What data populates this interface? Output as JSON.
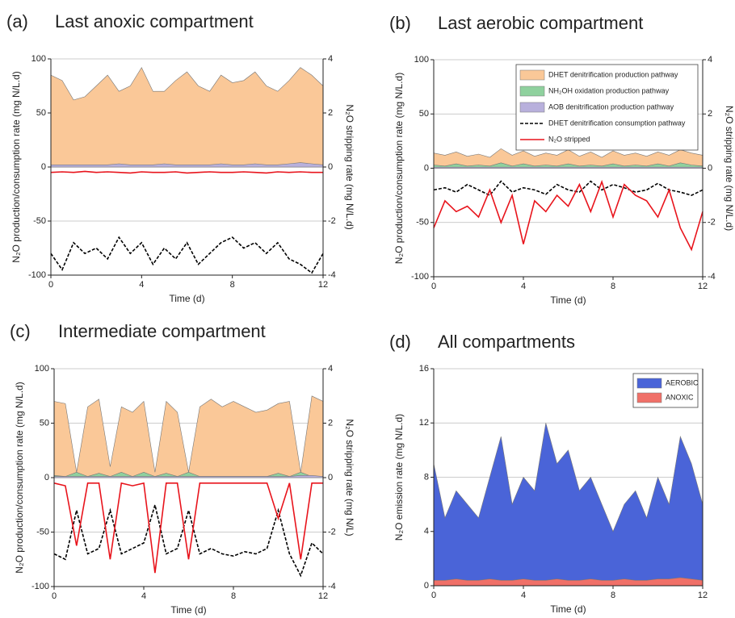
{
  "chart_data": [
    {
      "type": "area",
      "label": "(a)",
      "title": "Last anoxic compartment",
      "xlabel": "Time (d)",
      "ylabel": "N₂O production/consumption rate (mg N/L.d)",
      "y2label": "N₂O stripping rate (mg N/L.d)",
      "x": [
        0,
        0.5,
        1,
        1.5,
        2,
        2.5,
        3,
        3.5,
        4,
        4.5,
        5,
        5.5,
        6,
        6.5,
        7,
        7.5,
        8,
        8.5,
        9,
        9.5,
        10,
        10.5,
        11,
        11.5,
        12
      ],
      "xlim": [
        0,
        12
      ],
      "xticks": [
        0,
        4,
        8,
        12
      ],
      "ylim": [
        -100,
        100
      ],
      "yticks": [
        -100,
        -50,
        0,
        50,
        100
      ],
      "y2lim": [
        -4,
        4
      ],
      "y2ticks": [
        -4,
        -2,
        0,
        2,
        4
      ],
      "grid": true,
      "series": [
        {
          "style": "area",
          "color": "#fac898",
          "values": [
            85,
            80,
            62,
            65,
            75,
            85,
            70,
            75,
            92,
            70,
            70,
            80,
            88,
            75,
            70,
            85,
            78,
            80,
            88,
            75,
            70,
            80,
            92,
            85,
            75
          ]
        },
        {
          "style": "area",
          "color": "#8fd19e",
          "values": [
            1,
            1,
            1,
            1,
            1,
            1,
            1,
            1,
            1,
            1,
            1,
            1,
            1,
            1,
            1,
            1,
            1,
            1,
            1,
            1,
            1,
            1,
            1,
            1,
            1
          ]
        },
        {
          "style": "area",
          "color": "#b8b0dc",
          "values": [
            2,
            2,
            2,
            2,
            2,
            2,
            3,
            2,
            2,
            2,
            3,
            2,
            2,
            2,
            2,
            3,
            2,
            2,
            3,
            2,
            2,
            3,
            4,
            3,
            2
          ]
        },
        {
          "style": "line",
          "dash": true,
          "color": "#000000",
          "values": [
            -80,
            -95,
            -70,
            -80,
            -75,
            -85,
            -65,
            -80,
            -70,
            -90,
            -75,
            -85,
            -70,
            -90,
            -80,
            -70,
            -65,
            -75,
            -70,
            -80,
            -70,
            -85,
            -90,
            -98,
            -80
          ]
        },
        {
          "style": "line",
          "axis": "y2",
          "color": "#e8141c",
          "values": [
            -0.2,
            -0.18,
            -0.2,
            -0.16,
            -0.2,
            -0.18,
            -0.2,
            -0.22,
            -0.18,
            -0.2,
            -0.2,
            -0.18,
            -0.22,
            -0.2,
            -0.18,
            -0.2,
            -0.2,
            -0.18,
            -0.2,
            -0.22,
            -0.18,
            -0.2,
            -0.18,
            -0.2,
            -0.2
          ]
        }
      ]
    },
    {
      "type": "area",
      "label": "(b)",
      "title": "Last aerobic compartment",
      "xlabel": "Time (d)",
      "ylabel": "N₂O production/consumption rate (mg N/L.d)",
      "y2label": "N₂O stripping rate (mg N/L.d)",
      "x": [
        0,
        0.5,
        1,
        1.5,
        2,
        2.5,
        3,
        3.5,
        4,
        4.5,
        5,
        5.5,
        6,
        6.5,
        7,
        7.5,
        8,
        8.5,
        9,
        9.5,
        10,
        10.5,
        11,
        11.5,
        12
      ],
      "xlim": [
        0,
        12
      ],
      "xticks": [
        0,
        4,
        8,
        12
      ],
      "ylim": [
        -100,
        100
      ],
      "yticks": [
        -100,
        -50,
        0,
        50,
        100
      ],
      "y2lim": [
        -4,
        4
      ],
      "y2ticks": [
        -4,
        -2,
        0,
        2,
        4
      ],
      "grid": true,
      "legend": "upper right",
      "series": [
        {
          "name": "DHET denitrification production pathway",
          "style": "area",
          "color": "#fac898",
          "values": [
            14,
            12,
            15,
            11,
            13,
            10,
            18,
            12,
            16,
            11,
            14,
            12,
            17,
            11,
            15,
            10,
            16,
            12,
            14,
            11,
            15,
            12,
            17,
            14,
            12
          ]
        },
        {
          "name": "NH₂OH oxidation production pathway",
          "style": "area",
          "color": "#8fd19e",
          "values": [
            3,
            2,
            4,
            2,
            3,
            2,
            5,
            2,
            4,
            2,
            3,
            2,
            4,
            2,
            3,
            2,
            4,
            2,
            3,
            2,
            4,
            2,
            5,
            3,
            2
          ]
        },
        {
          "name": "AOB denitrification production pathway",
          "style": "area",
          "color": "#b8b0dc",
          "values": [
            1,
            1,
            1,
            1,
            1,
            1,
            1,
            1,
            1,
            1,
            1,
            1,
            1,
            1,
            1,
            1,
            1,
            1,
            1,
            1,
            1,
            1,
            1,
            1,
            1
          ]
        },
        {
          "name": "DHET denitrification consumption pathway",
          "style": "line",
          "dash": true,
          "color": "#000000",
          "values": [
            -20,
            -18,
            -22,
            -15,
            -20,
            -25,
            -12,
            -22,
            -18,
            -20,
            -24,
            -15,
            -20,
            -22,
            -12,
            -20,
            -15,
            -18,
            -22,
            -20,
            -14,
            -20,
            -22,
            -25,
            -20
          ]
        },
        {
          "name": "N₂O stripped",
          "style": "line",
          "axis": "y2",
          "color": "#e8141c",
          "values": [
            -2.2,
            -1.2,
            -1.6,
            -1.4,
            -1.8,
            -0.8,
            -2.0,
            -1.0,
            -2.8,
            -1.2,
            -1.6,
            -1.0,
            -1.4,
            -0.6,
            -1.6,
            -0.5,
            -1.8,
            -0.6,
            -1.0,
            -1.2,
            -1.8,
            -0.8,
            -2.2,
            -3.0,
            -1.6
          ]
        }
      ]
    },
    {
      "type": "area",
      "label": "(c)",
      "title": "Intermediate compartment",
      "xlabel": "Time (d)",
      "ylabel": "N₂O production/consumption rate (mg N/L.d)",
      "y2label": "N₂O stripping rate (mg N/L)",
      "x": [
        0,
        0.5,
        1,
        1.5,
        2,
        2.5,
        3,
        3.5,
        4,
        4.5,
        5,
        5.5,
        6,
        6.5,
        7,
        7.5,
        8,
        8.5,
        9,
        9.5,
        10,
        10.5,
        11,
        11.5,
        12
      ],
      "xlim": [
        0,
        12
      ],
      "xticks": [
        0,
        4,
        8,
        12
      ],
      "ylim": [
        -100,
        100
      ],
      "yticks": [
        -100,
        -50,
        0,
        50,
        100
      ],
      "y2lim": [
        -4,
        4
      ],
      "y2ticks": [
        -4,
        -2,
        0,
        2,
        4
      ],
      "grid": true,
      "series": [
        {
          "style": "area",
          "color": "#fac898",
          "values": [
            70,
            68,
            5,
            65,
            72,
            10,
            65,
            60,
            70,
            5,
            70,
            60,
            5,
            65,
            72,
            65,
            70,
            65,
            60,
            62,
            68,
            70,
            5,
            75,
            70
          ]
        },
        {
          "style": "area",
          "color": "#8fd19e",
          "values": [
            2,
            1,
            5,
            1,
            4,
            1,
            5,
            1,
            5,
            1,
            4,
            1,
            5,
            1,
            1,
            1,
            1,
            1,
            1,
            1,
            4,
            1,
            5,
            1,
            1
          ]
        },
        {
          "style": "area",
          "color": "#b8b0dc",
          "values": [
            1,
            1,
            1,
            1,
            1,
            1,
            1,
            1,
            1,
            1,
            1,
            1,
            1,
            1,
            1,
            1,
            1,
            1,
            1,
            1,
            1,
            1,
            2,
            2,
            1
          ]
        },
        {
          "style": "line",
          "dash": true,
          "color": "#000000",
          "values": [
            -70,
            -75,
            -30,
            -70,
            -65,
            -30,
            -70,
            -65,
            -60,
            -25,
            -70,
            -65,
            -30,
            -70,
            -65,
            -70,
            -72,
            -68,
            -70,
            -65,
            -30,
            -70,
            -90,
            -60,
            -70
          ]
        },
        {
          "style": "line",
          "axis": "y2",
          "color": "#e8141c",
          "values": [
            -0.2,
            -0.3,
            -2.5,
            -0.2,
            -0.2,
            -3.0,
            -0.2,
            -0.3,
            -0.2,
            -3.5,
            -0.2,
            -0.2,
            -3.0,
            -0.2,
            -0.2,
            -0.2,
            -0.2,
            -0.2,
            -0.2,
            -0.2,
            -1.5,
            -0.2,
            -3.0,
            -0.2,
            -0.2
          ]
        }
      ]
    },
    {
      "type": "area",
      "label": "(d)",
      "title": "All compartments",
      "xlabel": "Time (d)",
      "ylabel": "N₂O emission rate (mg N/L.d)",
      "x": [
        0,
        0.5,
        1,
        1.5,
        2,
        2.5,
        3,
        3.5,
        4,
        4.5,
        5,
        5.5,
        6,
        6.5,
        7,
        7.5,
        8,
        8.5,
        9,
        9.5,
        10,
        10.5,
        11,
        11.5,
        12
      ],
      "xlim": [
        0,
        12
      ],
      "xticks": [
        0,
        4,
        8,
        12
      ],
      "ylim": [
        0,
        16
      ],
      "yticks": [
        0,
        4,
        8,
        12,
        16
      ],
      "grid": true,
      "legend": "upper right",
      "series": [
        {
          "name": "AEROBIC",
          "style": "area",
          "color": "#4a64d8",
          "values": [
            9,
            5,
            7,
            6,
            5,
            8,
            11,
            6,
            8,
            7,
            12,
            9,
            10,
            7,
            8,
            6,
            4,
            6,
            7,
            5,
            8,
            6,
            11,
            9,
            6
          ]
        },
        {
          "name": "ANOXIC",
          "style": "area",
          "color": "#f07068",
          "values": [
            0.4,
            0.4,
            0.5,
            0.4,
            0.4,
            0.5,
            0.4,
            0.4,
            0.5,
            0.4,
            0.4,
            0.5,
            0.4,
            0.4,
            0.5,
            0.4,
            0.4,
            0.5,
            0.4,
            0.4,
            0.5,
            0.5,
            0.6,
            0.5,
            0.4
          ]
        }
      ]
    }
  ]
}
